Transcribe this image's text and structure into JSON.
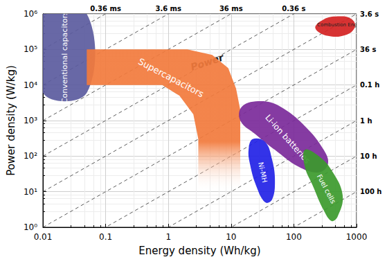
{
  "chart_data": {
    "type": "region",
    "x_label": "Energy density (Wh/kg)",
    "y_label": "Power density (W/kg)",
    "log": true,
    "grid": true,
    "xlim": [
      0.01,
      1000
    ],
    "ylim": [
      1,
      1000000
    ],
    "xticks": [
      0.01,
      0.1,
      1,
      10,
      100,
      1000
    ],
    "yticks": [
      {
        "value": 1,
        "label": "10⁰"
      },
      {
        "value": 10,
        "label": "10¹"
      },
      {
        "value": 100,
        "label": "10²"
      },
      {
        "value": 1000,
        "label": "10³"
      },
      {
        "value": 10000,
        "label": "10⁴"
      },
      {
        "value": 100000,
        "label": "10⁵"
      },
      {
        "value": 1000000,
        "label": "10⁶"
      }
    ],
    "series": [
      {
        "name": "Conventional capacitors",
        "color": "#5b5b9e",
        "points": [
          [
            0.01,
            6000
          ],
          [
            0.05,
            6000
          ],
          [
            0.05,
            1000000
          ],
          [
            0.01,
            1000000
          ]
        ]
      },
      {
        "name": "Supercapacitors",
        "color": "#f27a3c",
        "points": [
          [
            0.05,
            100000
          ],
          [
            2,
            100000
          ],
          [
            5,
            70000
          ],
          [
            9,
            30000
          ],
          [
            12,
            8000
          ],
          [
            14,
            2000
          ],
          [
            14,
            10
          ],
          [
            3,
            10
          ],
          [
            3,
            300
          ],
          [
            2.5,
            1500
          ],
          [
            1.5,
            5000
          ],
          [
            0.8,
            10000
          ],
          [
            0.05,
            10000
          ]
        ]
      },
      {
        "name": "Li-ion batteries",
        "color": "#7b2a9a",
        "points": [
          [
            15,
            2500
          ],
          [
            30,
            3500
          ],
          [
            60,
            2500
          ],
          [
            150,
            700
          ],
          [
            300,
            150
          ],
          [
            350,
            60
          ],
          [
            250,
            35
          ],
          [
            120,
            50
          ],
          [
            50,
            150
          ],
          [
            25,
            400
          ],
          [
            14,
            1000
          ]
        ]
      },
      {
        "name": "Ni-MH",
        "color": "#2222e6",
        "points": [
          [
            22,
            300
          ],
          [
            35,
            250
          ],
          [
            45,
            80
          ],
          [
            50,
            20
          ],
          [
            45,
            6
          ],
          [
            35,
            5
          ],
          [
            25,
            15
          ],
          [
            20,
            60
          ],
          [
            19,
            150
          ]
        ]
      },
      {
        "name": "Fuel cells",
        "color": "#3c9a2c",
        "points": [
          [
            150,
            150
          ],
          [
            250,
            100
          ],
          [
            400,
            40
          ],
          [
            600,
            8
          ],
          [
            500,
            2
          ],
          [
            400,
            1.5
          ],
          [
            300,
            3
          ],
          [
            200,
            15
          ],
          [
            150,
            50
          ]
        ]
      },
      {
        "name": "Combustion Engine",
        "color": "#d42222",
        "points": [
          [
            220,
            400000
          ],
          [
            300,
            700000
          ],
          [
            500,
            850000
          ],
          [
            800,
            750000
          ],
          [
            950,
            450000
          ],
          [
            700,
            260000
          ],
          [
            350,
            240000
          ]
        ]
      }
    ],
    "discharge_time_lines": [
      {
        "label": "0.36 ms",
        "hours": 1e-07
      },
      {
        "label": "3.6 ms",
        "hours": 1e-06
      },
      {
        "label": "36 ms",
        "hours": 1e-05
      },
      {
        "label": "0.36 s",
        "hours": 0.0001
      },
      {
        "label": "3.6 s",
        "hours": 0.001
      },
      {
        "label": "36 s",
        "hours": 0.01
      },
      {
        "label": "0.1 h",
        "hours": 0.1
      },
      {
        "label": "1 h",
        "hours": 1
      },
      {
        "label": "10 h",
        "hours": 10
      },
      {
        "label": "100 h",
        "hours": 100
      }
    ],
    "annotations": [
      "Power"
    ]
  }
}
